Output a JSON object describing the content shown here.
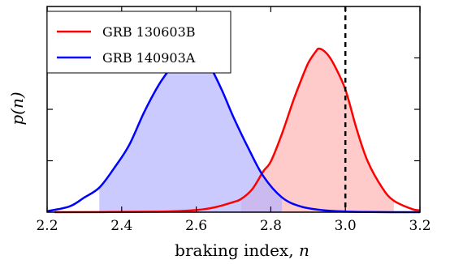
{
  "chart_data": {
    "type": "line",
    "title": "",
    "xlabel": "braking index, ",
    "xlabel_var": "n",
    "ylabel": "p(n)",
    "xlim": [
      2.2,
      3.2
    ],
    "ylim": [
      0,
      1.0
    ],
    "x_ticks": [
      "2.2",
      "2.4",
      "2.6",
      "2.8",
      "3.0",
      "3.2"
    ],
    "y_ticks_labeled": false,
    "grid": false,
    "legend_position": "top-left",
    "reference_line": {
      "x": 3.0,
      "style": "dashed",
      "color": "#000000"
    },
    "series": [
      {
        "name": "GRB 130603B",
        "color": "#ff0000",
        "fill_color": "#ffb3b3",
        "shaded_interval": [
          2.72,
          3.13
        ],
        "x": [
          2.22,
          2.5,
          2.6,
          2.65,
          2.7,
          2.72,
          2.75,
          2.78,
          2.8,
          2.83,
          2.86,
          2.88,
          2.9,
          2.92,
          2.93,
          2.95,
          2.97,
          3.0,
          3.03,
          3.06,
          3.1,
          3.13,
          3.18,
          3.2
        ],
        "y": [
          0.0,
          0.003,
          0.013,
          0.03,
          0.062,
          0.08,
          0.14,
          0.25,
          0.31,
          0.48,
          0.68,
          0.8,
          0.91,
          0.98,
          1.0,
          0.97,
          0.9,
          0.75,
          0.51,
          0.31,
          0.145,
          0.07,
          0.018,
          0.012
        ]
      },
      {
        "name": "GRB 140903A",
        "color": "#0000ff",
        "fill_color": "#b3b3ff",
        "shaded_interval": [
          2.34,
          2.83
        ],
        "x": [
          2.2,
          2.26,
          2.3,
          2.34,
          2.38,
          2.42,
          2.46,
          2.5,
          2.54,
          2.56,
          2.58,
          2.6,
          2.62,
          2.64,
          2.67,
          2.7,
          2.74,
          2.78,
          2.83,
          2.88,
          2.94,
          3.0,
          3.06,
          3.12,
          3.18,
          3.2
        ],
        "y": [
          0.006,
          0.035,
          0.09,
          0.15,
          0.27,
          0.41,
          0.61,
          0.78,
          0.91,
          0.98,
          1.0,
          0.99,
          0.95,
          0.88,
          0.74,
          0.58,
          0.39,
          0.22,
          0.09,
          0.035,
          0.012,
          0.004,
          0.001,
          0.0,
          0.0,
          0.0
        ]
      }
    ]
  }
}
